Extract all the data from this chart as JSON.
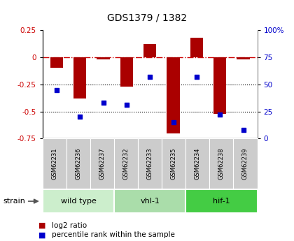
{
  "title": "GDS1379 / 1382",
  "samples": [
    "GSM62231",
    "GSM62236",
    "GSM62237",
    "GSM62232",
    "GSM62233",
    "GSM62235",
    "GSM62234",
    "GSM62238",
    "GSM62239"
  ],
  "log2_ratio": [
    -0.1,
    -0.38,
    -0.02,
    -0.27,
    0.12,
    -0.7,
    0.18,
    -0.52,
    -0.02
  ],
  "percentile_rank": [
    45,
    20,
    33,
    31,
    57,
    15,
    57,
    22,
    8
  ],
  "bar_color": "#aa0000",
  "dot_color": "#0000cc",
  "ylim_left": [
    -0.75,
    0.25
  ],
  "ylim_right": [
    0,
    100
  ],
  "right_ticks": [
    0,
    25,
    50,
    75,
    100
  ],
  "right_tick_labels": [
    "0",
    "25",
    "50",
    "75",
    "100%"
  ],
  "left_ticks": [
    -0.75,
    -0.5,
    -0.25,
    0,
    0.25
  ],
  "left_tick_labels": [
    "-0.75",
    "-0.5",
    "-0.25",
    "0",
    "0.25"
  ],
  "hline_color": "#cc0000",
  "dotted_lines": [
    -0.25,
    -0.5
  ],
  "groups": [
    {
      "label": "wild type",
      "start": 0,
      "end": 3,
      "color": "#cceecc"
    },
    {
      "label": "vhl-1",
      "start": 3,
      "end": 6,
      "color": "#aaddaa"
    },
    {
      "label": "hif-1",
      "start": 6,
      "end": 9,
      "color": "#44cc44"
    }
  ],
  "strain_label": "strain",
  "legend_items": [
    {
      "color": "#aa0000",
      "label": "log2 ratio"
    },
    {
      "color": "#0000cc",
      "label": "percentile rank within the sample"
    }
  ],
  "bg_color": "#ffffff",
  "plot_bg": "#ffffff",
  "tick_label_color_left": "#cc0000",
  "tick_label_color_right": "#0000cc",
  "bar_width": 0.55
}
